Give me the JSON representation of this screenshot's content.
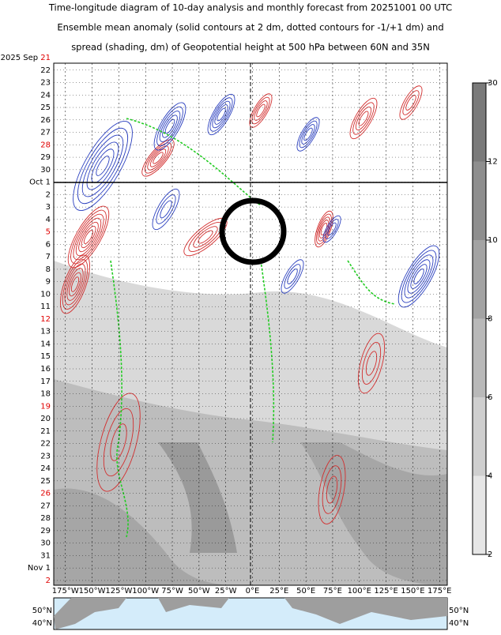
{
  "title_lines": [
    "Time-longitude diagram of 10-day analysis and monthly forecast from 20251001 00 UTC",
    "Ensemble mean anomaly (solid contours at 2 dm, dotted contours for -1/+1 dm) and",
    "spread (shading, dm) of Geopotential height at 500 hPa between 60N and 35N"
  ],
  "dates": [
    {
      "prefix": "2025 Sep",
      "text": "21",
      "color": "#e00000"
    },
    {
      "text": "22"
    },
    {
      "text": "23"
    },
    {
      "text": "24"
    },
    {
      "text": "25"
    },
    {
      "text": "26"
    },
    {
      "text": "27"
    },
    {
      "text": "28",
      "color": "#e00000"
    },
    {
      "text": "29"
    },
    {
      "text": "30"
    },
    {
      "prefix": "Oct",
      "text": "1"
    },
    {
      "text": "2"
    },
    {
      "text": "3"
    },
    {
      "text": "4"
    },
    {
      "text": "5",
      "color": "#e00000"
    },
    {
      "text": "6"
    },
    {
      "text": "7"
    },
    {
      "text": "8"
    },
    {
      "text": "9"
    },
    {
      "text": "10"
    },
    {
      "text": "11"
    },
    {
      "text": "12",
      "color": "#e00000"
    },
    {
      "text": "13"
    },
    {
      "text": "14"
    },
    {
      "text": "15"
    },
    {
      "text": "16"
    },
    {
      "text": "17"
    },
    {
      "text": "18"
    },
    {
      "text": "19",
      "color": "#e00000"
    },
    {
      "text": "20"
    },
    {
      "text": "21"
    },
    {
      "text": "22"
    },
    {
      "text": "23"
    },
    {
      "text": "24"
    },
    {
      "text": "25"
    },
    {
      "text": "26",
      "color": "#e00000"
    },
    {
      "text": "27"
    },
    {
      "text": "28"
    },
    {
      "text": "29"
    },
    {
      "text": "30"
    },
    {
      "text": "31"
    },
    {
      "prefix": "Nov",
      "text": "1"
    },
    {
      "text": "2",
      "color": "#e00000"
    }
  ],
  "longitudes": [
    "175°W",
    "150°W",
    "125°W",
    "100°W",
    "75°W",
    "50°W",
    "25°W",
    "0°E",
    "25°E",
    "50°E",
    "75°E",
    "100°E",
    "125°E",
    "150°E",
    "175°E"
  ],
  "colorbar_ticks": [
    30,
    12,
    10,
    8,
    6,
    4,
    2
  ],
  "map_labels": {
    "left": [
      "50°N",
      "40°N"
    ],
    "right": [
      "50°N",
      "40°N"
    ]
  }
}
